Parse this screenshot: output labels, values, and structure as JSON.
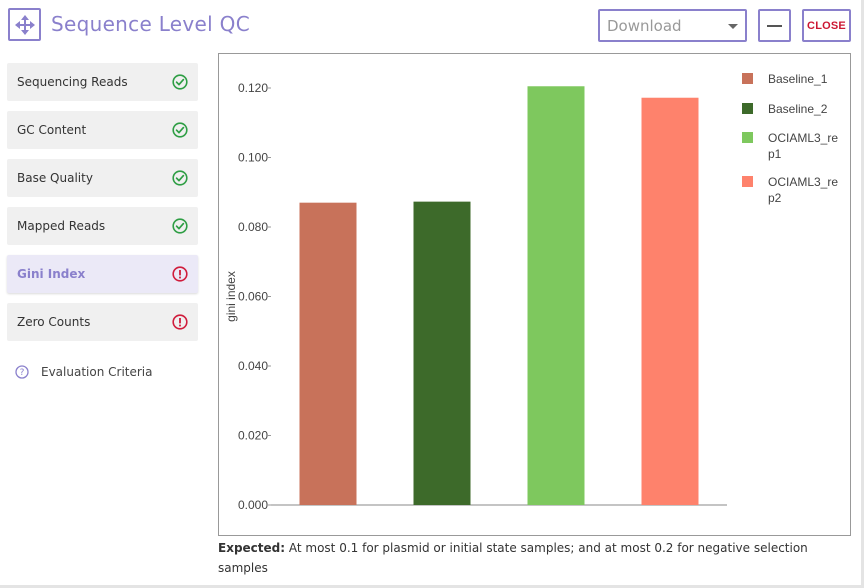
{
  "header": {
    "title": "Sequence Level QC",
    "download_placeholder": "Download",
    "close_label": "CLOSE"
  },
  "sidebar": {
    "items": [
      {
        "label": "Sequencing Reads",
        "status": "pass"
      },
      {
        "label": "GC Content",
        "status": "pass"
      },
      {
        "label": "Base Quality",
        "status": "pass"
      },
      {
        "label": "Mapped Reads",
        "status": "pass"
      },
      {
        "label": "Gini Index",
        "status": "fail",
        "active": true
      },
      {
        "label": "Zero Counts",
        "status": "fail"
      }
    ],
    "evaluation_label": "Evaluation Criteria"
  },
  "colors": {
    "accent": "#8a80cc",
    "pass": "#2e9e44",
    "fail": "#d01c3c"
  },
  "chart_data": {
    "type": "bar",
    "categories": [
      "Baseline_1",
      "Baseline_2",
      "OCIAML3_rep1",
      "OCIAML3_rep2"
    ],
    "legend_lines": [
      [
        "Baseline_1"
      ],
      [
        "Baseline_2"
      ],
      [
        "OCIAML3_re",
        "p1"
      ],
      [
        "OCIAML3_re",
        "p2"
      ]
    ],
    "values": [
      0.087,
      0.0873,
      0.1205,
      0.1172
    ],
    "colors": [
      "#c8725a",
      "#3d6a2a",
      "#7ec85e",
      "#fe826c"
    ],
    "ylabel": "gini index",
    "ylim": [
      0,
      0.12
    ],
    "yticks": [
      "0.000",
      "0.020",
      "0.040",
      "0.060",
      "0.080",
      "0.100",
      "0.120"
    ],
    "grid": false,
    "legend": "right"
  },
  "expected": {
    "label": "Expected:",
    "text": "At most 0.1 for plasmid or initial state samples; and at most 0.2 for negative selection samples"
  }
}
